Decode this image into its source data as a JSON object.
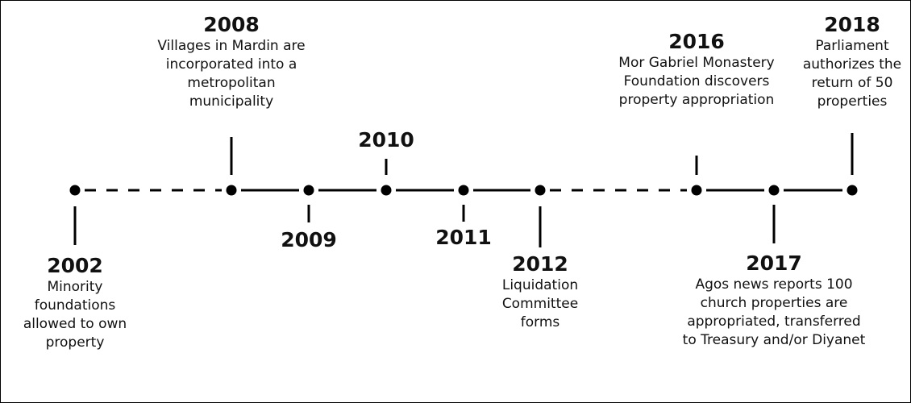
{
  "timeline": {
    "events": [
      {
        "year": "2002",
        "description": "Minority foundations allowed to own property"
      },
      {
        "year": "2008",
        "description": "Villages in Mardin are incorporated into a metropolitan municipality"
      },
      {
        "year": "2009",
        "description": ""
      },
      {
        "year": "2010",
        "description": ""
      },
      {
        "year": "2011",
        "description": ""
      },
      {
        "year": "2012",
        "description": "Liquidation Committee forms"
      },
      {
        "year": "2016",
        "description": "Mor Gabriel Monastery Foundation discovers property appropriation"
      },
      {
        "year": "2017",
        "description": "Agos news reports 100 church properties are appropriated, transferred to Treasury and/or Diyanet"
      },
      {
        "year": "2018",
        "description": "Parliament authorizes the return of 50 properties"
      }
    ],
    "segments": [
      "dashed",
      "solid",
      "solid",
      "solid",
      "solid",
      "dashed",
      "solid",
      "solid"
    ],
    "line_color": "#000000"
  }
}
